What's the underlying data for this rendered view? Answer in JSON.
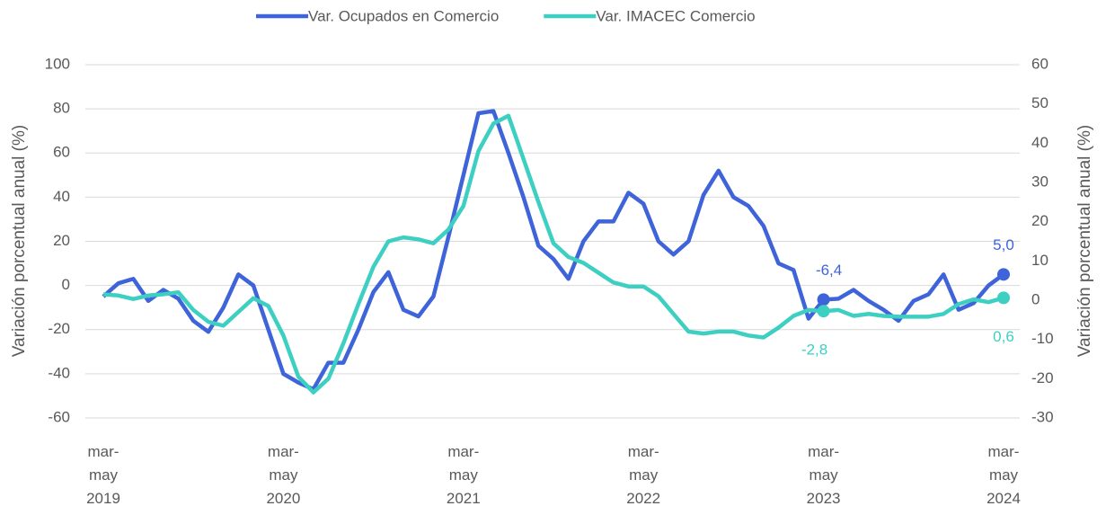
{
  "chart_data": {
    "type": "line",
    "ylabel": "Variación porcentual anual (%)",
    "y2label": "Variación porcentual anual (%)",
    "categories": [
      "mar-\nmay\n2019",
      null,
      null,
      null,
      null,
      null,
      null,
      null,
      null,
      null,
      null,
      null,
      "mar-\nmay\n2020",
      null,
      null,
      null,
      null,
      null,
      null,
      null,
      null,
      null,
      null,
      null,
      "mar-\nmay\n2021",
      null,
      null,
      null,
      null,
      null,
      null,
      null,
      null,
      null,
      null,
      null,
      "mar-\nmay\n2022",
      null,
      null,
      null,
      null,
      null,
      null,
      null,
      null,
      null,
      null,
      null,
      "mar-\nmay\n2023",
      null,
      null,
      null,
      null,
      null,
      null,
      null,
      null,
      null,
      null,
      null,
      "mar-\nmay\n2024"
    ],
    "series": [
      {
        "name": "Var. Ocupados en Comercio",
        "color": "#3f64d9",
        "values": [
          -5,
          1,
          3,
          -7,
          -2,
          -6,
          -16,
          -21,
          -10,
          5,
          0,
          -20,
          -40,
          -44,
          -47,
          -35,
          -35,
          -20,
          -3,
          6,
          -11,
          -14,
          -5,
          22,
          50,
          78,
          79,
          60,
          40,
          18,
          12,
          3,
          20,
          29,
          29,
          42,
          37,
          20,
          14,
          20,
          41,
          52,
          40,
          36,
          27,
          10,
          7,
          -15,
          -6.4,
          -6,
          -2,
          -7,
          -11,
          -16,
          -7,
          -4,
          5,
          -11,
          -8,
          0,
          5.0
        ],
        "value_labels": [
          null,
          null,
          null,
          null,
          null,
          null,
          null,
          null,
          null,
          null,
          null,
          null,
          null,
          null,
          null,
          null,
          null,
          null,
          null,
          null,
          null,
          null,
          null,
          null,
          null,
          null,
          null,
          null,
          null,
          null,
          null,
          null,
          null,
          null,
          null,
          null,
          null,
          null,
          null,
          null,
          null,
          null,
          null,
          null,
          null,
          null,
          null,
          null,
          "-6,4",
          null,
          null,
          null,
          null,
          null,
          null,
          null,
          null,
          null,
          null,
          null,
          "5,0"
        ]
      },
      {
        "name": "Var. IMACEC Comercio",
        "color": "#3dcfc2",
        "axis": "y2",
        "values": [
          1.5,
          1.2,
          0.3,
          1.2,
          1.5,
          2.0,
          -2.5,
          -5.5,
          -6.5,
          -3,
          0.5,
          -1.5,
          -9,
          -19.5,
          -23.5,
          -20,
          -11,
          -1,
          8.5,
          15,
          16,
          15.5,
          14.5,
          18,
          24,
          38,
          45,
          47,
          36,
          25,
          14.5,
          11,
          9.5,
          7,
          4.5,
          3.5,
          3.5,
          1,
          -3.5,
          -8,
          -8.5,
          -8,
          -8,
          -9,
          -9.5,
          -7,
          -4,
          -2.5,
          -2.8,
          -2.5,
          -4,
          -3.5,
          -4,
          -4.2,
          -4.2,
          -4.2,
          -3.5,
          -1,
          0.2,
          -0.5,
          0.6
        ],
        "value_labels": [
          null,
          null,
          null,
          null,
          null,
          null,
          null,
          null,
          null,
          null,
          null,
          null,
          null,
          null,
          null,
          null,
          null,
          null,
          null,
          null,
          null,
          null,
          null,
          null,
          null,
          null,
          null,
          null,
          null,
          null,
          null,
          null,
          null,
          null,
          null,
          null,
          null,
          null,
          null,
          null,
          null,
          null,
          null,
          null,
          null,
          null,
          null,
          null,
          "-2,8",
          null,
          null,
          null,
          null,
          null,
          null,
          null,
          null,
          null,
          null,
          null,
          "0,6"
        ]
      }
    ],
    "ylim": [
      -60,
      100
    ],
    "yticks": [
      -60,
      -40,
      -20,
      0,
      20,
      40,
      60,
      80,
      100
    ],
    "y2lim": [
      -30,
      60
    ],
    "y2ticks": [
      -30,
      -20,
      -10,
      0,
      10,
      20,
      30,
      40,
      50,
      60
    ],
    "legend": "top"
  }
}
